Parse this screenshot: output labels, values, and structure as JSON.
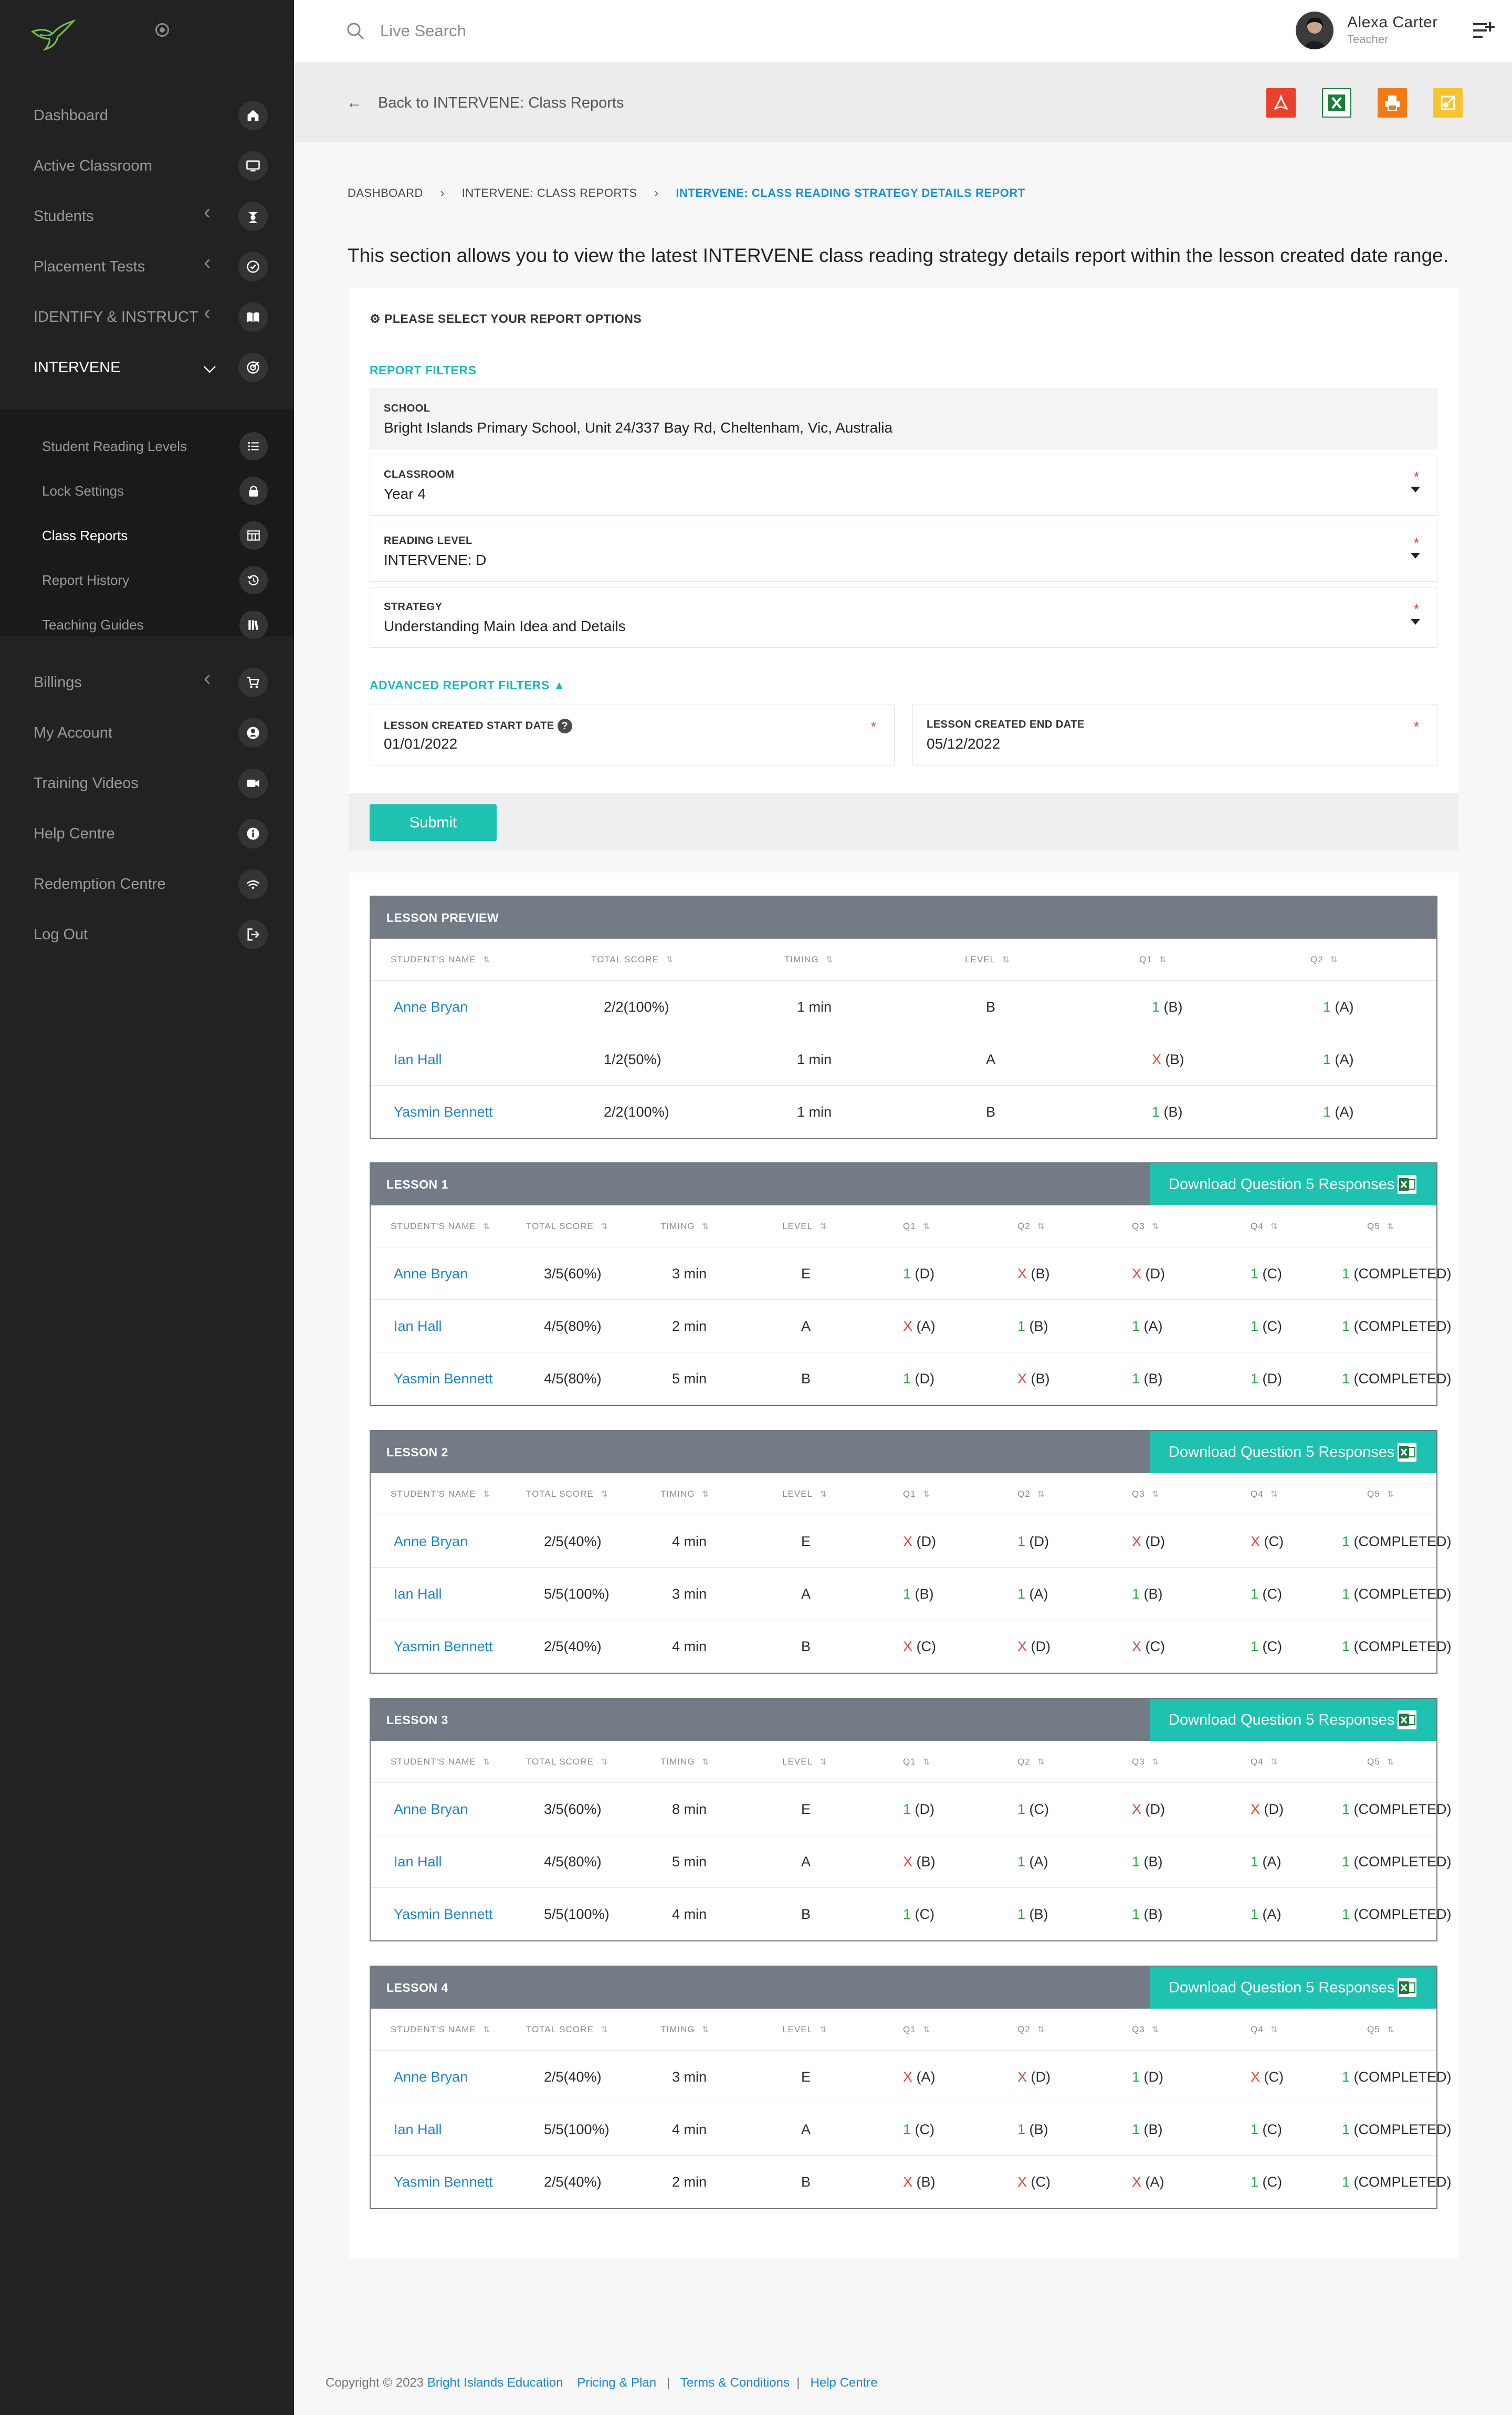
{
  "sidebar": {
    "items": [
      {
        "label": "Dashboard",
        "icon": "home-icon"
      },
      {
        "label": "Active Classroom",
        "icon": "monitor-icon"
      },
      {
        "label": "Students",
        "icon": "students-icon"
      },
      {
        "label": "Placement Tests",
        "icon": "check-circle-icon"
      },
      {
        "label": "IDENTIFY & INSTRUCT",
        "icon": "book-icon"
      },
      {
        "label": "INTERVENE",
        "icon": "target-icon"
      },
      {
        "label": "Billings",
        "icon": "cart-icon"
      },
      {
        "label": "My Account",
        "icon": "user-circle-icon"
      },
      {
        "label": "Training Videos",
        "icon": "video-icon"
      },
      {
        "label": "Help Centre",
        "icon": "info-icon"
      },
      {
        "label": "Redemption Centre",
        "icon": "redeem-icon"
      },
      {
        "label": "Log Out",
        "icon": "logout-icon"
      }
    ],
    "sub_items": [
      {
        "label": "Student Reading Levels",
        "icon": "list-icon"
      },
      {
        "label": "Lock Settings",
        "icon": "lock-icon"
      },
      {
        "label": "Class Reports",
        "icon": "table-icon"
      },
      {
        "label": "Report History",
        "icon": "history-icon"
      },
      {
        "label": "Teaching Guides",
        "icon": "books-icon"
      }
    ]
  },
  "topbar": {
    "search_placeholder": "Live Search",
    "user_name": "Alexa Carter",
    "user_role": "Teacher"
  },
  "subbar": {
    "back_label": "Back to INTERVENE: Class Reports",
    "export_colors": {
      "pdf": "#e8412c",
      "excel": "#1f7a3f",
      "print": "#f07a16",
      "key": "#f5c431"
    }
  },
  "breadcrumb": {
    "home": "DASHBOARD",
    "parent": "INTERVENE: CLASS REPORTS",
    "current": "INTERVENE: CLASS READING STRATEGY DETAILS REPORT"
  },
  "intro": "This section allows you to view the latest INTERVENE class reading strategy details report within the lesson created date range.",
  "options": {
    "heading": "PLEASE SELECT YOUR REPORT OPTIONS",
    "filters_title": "REPORT FILTERS",
    "school": {
      "label": "SCHOOL",
      "value": "Bright Islands Primary School, Unit 24/337 Bay Rd, Cheltenham, Vic, Australia"
    },
    "classroom": {
      "label": "CLASSROOM",
      "value": "Year 4"
    },
    "reading_level": {
      "label": "READING LEVEL",
      "value": "INTERVENE: D"
    },
    "strategy": {
      "label": "STRATEGY",
      "value": "Understanding Main Idea and Details"
    },
    "advanced_title": "ADVANCED REPORT FILTERS",
    "start_date": {
      "label": "LESSON CREATED START DATE",
      "value": "01/01/2022"
    },
    "end_date": {
      "label": "LESSON CREATED END DATE",
      "value": "05/12/2022"
    },
    "required_mark": "*",
    "submit_label": "Submit"
  },
  "download_label": "Download Question 5 Responses",
  "columns_short": [
    "STUDENT'S NAME",
    "TOTAL SCORE",
    "TIMING",
    "LEVEL",
    "Q1",
    "Q2"
  ],
  "columns_full": [
    "STUDENT'S NAME",
    "TOTAL SCORE",
    "TIMING",
    "LEVEL",
    "Q1",
    "Q2",
    "Q3",
    "Q4",
    "Q5"
  ],
  "lessons": [
    {
      "title": "LESSON PREVIEW",
      "rows": [
        {
          "name": "Anne Bryan",
          "score": "2/2(100%)",
          "timing": "1 min",
          "level": "B",
          "q": [
            [
              "1",
              " (B)",
              true
            ],
            [
              "1",
              " (A)",
              true
            ]
          ]
        },
        {
          "name": "Ian Hall",
          "score": "1/2(50%)",
          "timing": "1 min",
          "level": "A",
          "q": [
            [
              "X",
              " (B)",
              false
            ],
            [
              "1",
              " (A)",
              true
            ]
          ]
        },
        {
          "name": "Yasmin Bennett",
          "score": "2/2(100%)",
          "timing": "1 min",
          "level": "B",
          "q": [
            [
              "1",
              " (B)",
              true
            ],
            [
              "1",
              " (A)",
              true
            ]
          ]
        }
      ]
    },
    {
      "title": "LESSON 1",
      "rows": [
        {
          "name": "Anne Bryan",
          "score": "3/5(60%)",
          "timing": "3 min",
          "level": "E",
          "q": [
            [
              "1",
              " (D)",
              true
            ],
            [
              "X",
              " (B)",
              false
            ],
            [
              "X",
              " (D)",
              false
            ],
            [
              "1",
              " (C)",
              true
            ],
            [
              "1",
              " (COMPLETED)",
              true
            ]
          ]
        },
        {
          "name": "Ian Hall",
          "score": "4/5(80%)",
          "timing": "2 min",
          "level": "A",
          "q": [
            [
              "X",
              " (A)",
              false
            ],
            [
              "1",
              " (B)",
              true
            ],
            [
              "1",
              " (A)",
              true
            ],
            [
              "1",
              " (C)",
              true
            ],
            [
              "1",
              " (COMPLETED)",
              true
            ]
          ]
        },
        {
          "name": "Yasmin Bennett",
          "score": "4/5(80%)",
          "timing": "5 min",
          "level": "B",
          "q": [
            [
              "1",
              " (D)",
              true
            ],
            [
              "X",
              " (B)",
              false
            ],
            [
              "1",
              " (B)",
              true
            ],
            [
              "1",
              " (D)",
              true
            ],
            [
              "1",
              " (COMPLETED)",
              true
            ]
          ]
        }
      ]
    },
    {
      "title": "LESSON 2",
      "rows": [
        {
          "name": "Anne Bryan",
          "score": "2/5(40%)",
          "timing": "4 min",
          "level": "E",
          "q": [
            [
              "X",
              " (D)",
              false
            ],
            [
              "1",
              " (D)",
              true
            ],
            [
              "X",
              " (D)",
              false
            ],
            [
              "X",
              " (C)",
              false
            ],
            [
              "1",
              " (COMPLETED)",
              true
            ]
          ]
        },
        {
          "name": "Ian Hall",
          "score": "5/5(100%)",
          "timing": "3 min",
          "level": "A",
          "q": [
            [
              "1",
              " (B)",
              true
            ],
            [
              "1",
              " (A)",
              true
            ],
            [
              "1",
              " (B)",
              true
            ],
            [
              "1",
              " (C)",
              true
            ],
            [
              "1",
              " (COMPLETED)",
              true
            ]
          ]
        },
        {
          "name": "Yasmin Bennett",
          "score": "2/5(40%)",
          "timing": "4 min",
          "level": "B",
          "q": [
            [
              "X",
              " (C)",
              false
            ],
            [
              "X",
              " (D)",
              false
            ],
            [
              "X",
              " (C)",
              false
            ],
            [
              "1",
              " (C)",
              true
            ],
            [
              "1",
              " (COMPLETED)",
              true
            ]
          ]
        }
      ]
    },
    {
      "title": "LESSON 3",
      "rows": [
        {
          "name": "Anne Bryan",
          "score": "3/5(60%)",
          "timing": "8 min",
          "level": "E",
          "q": [
            [
              "1",
              " (D)",
              true
            ],
            [
              "1",
              " (C)",
              true
            ],
            [
              "X",
              " (D)",
              false
            ],
            [
              "X",
              " (D)",
              false
            ],
            [
              "1",
              " (COMPLETED)",
              true
            ]
          ]
        },
        {
          "name": "Ian Hall",
          "score": "4/5(80%)",
          "timing": "5 min",
          "level": "A",
          "q": [
            [
              "X",
              " (B)",
              false
            ],
            [
              "1",
              " (A)",
              true
            ],
            [
              "1",
              " (B)",
              true
            ],
            [
              "1",
              " (A)",
              true
            ],
            [
              "1",
              " (COMPLETED)",
              true
            ]
          ]
        },
        {
          "name": "Yasmin Bennett",
          "score": "5/5(100%)",
          "timing": "4 min",
          "level": "B",
          "q": [
            [
              "1",
              " (C)",
              true
            ],
            [
              "1",
              " (B)",
              true
            ],
            [
              "1",
              " (B)",
              true
            ],
            [
              "1",
              " (A)",
              true
            ],
            [
              "1",
              " (COMPLETED)",
              true
            ]
          ]
        }
      ]
    },
    {
      "title": "LESSON 4",
      "rows": [
        {
          "name": "Anne Bryan",
          "score": "2/5(40%)",
          "timing": "3 min",
          "level": "E",
          "q": [
            [
              "X",
              " (A)",
              false
            ],
            [
              "X",
              " (D)",
              false
            ],
            [
              "1",
              " (D)",
              true
            ],
            [
              "X",
              " (C)",
              false
            ],
            [
              "1",
              " (COMPLETED)",
              true
            ]
          ]
        },
        {
          "name": "Ian Hall",
          "score": "5/5(100%)",
          "timing": "4 min",
          "level": "A",
          "q": [
            [
              "1",
              " (C)",
              true
            ],
            [
              "1",
              " (B)",
              true
            ],
            [
              "1",
              " (B)",
              true
            ],
            [
              "1",
              " (C)",
              true
            ],
            [
              "1",
              " (COMPLETED)",
              true
            ]
          ]
        },
        {
          "name": "Yasmin Bennett",
          "score": "2/5(40%)",
          "timing": "2 min",
          "level": "B",
          "q": [
            [
              "X",
              " (B)",
              false
            ],
            [
              "X",
              " (C)",
              false
            ],
            [
              "X",
              " (A)",
              false
            ],
            [
              "1",
              " (C)",
              true
            ],
            [
              "1",
              " (COMPLETED)",
              true
            ]
          ]
        }
      ]
    }
  ],
  "footer": {
    "copyright": "Copyright © 2023",
    "company": "Bright Islands Education",
    "links": [
      "Pricing & Plan",
      "Terms & Conditions",
      "Help Centre"
    ],
    "separator": "|"
  },
  "colors": {
    "accent": "#1fc2b0",
    "link": "#1f86c9",
    "correct": "#2aa84a",
    "wrong": "#e0463c",
    "table_head": "#737b86"
  }
}
